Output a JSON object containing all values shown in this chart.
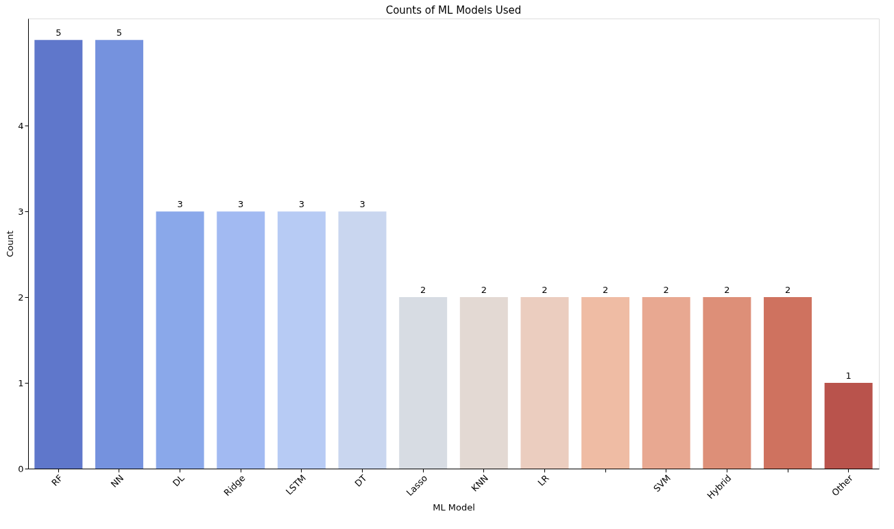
{
  "chart_data": {
    "type": "bar",
    "title": "Counts of ML Models Used",
    "xlabel": "ML Model",
    "ylabel": "Count",
    "categories": [
      "RF",
      "NN",
      "DL",
      "Ridge",
      "LSTM",
      "DT",
      "Lasso",
      "KNN",
      "LR",
      null,
      "SVM",
      "Hybrid",
      null,
      "Other"
    ],
    "values": [
      5,
      5,
      3,
      3,
      3,
      3,
      2,
      2,
      2,
      2,
      2,
      2,
      2,
      1
    ],
    "colors": [
      "#5f77cb",
      "#7592de",
      "#8aa8ea",
      "#a2baf2",
      "#b7cbf4",
      "#c9d6ef",
      "#d7dce3",
      "#e3d9d3",
      "#ebcdbf",
      "#efbca4",
      "#e8a891",
      "#dd8f78",
      "#cf725f",
      "#b9534c"
    ],
    "ylim": [
      0,
      5.25
    ],
    "yticks": [
      0,
      1,
      2,
      3,
      4
    ],
    "data_labels": true,
    "grid": false
  }
}
